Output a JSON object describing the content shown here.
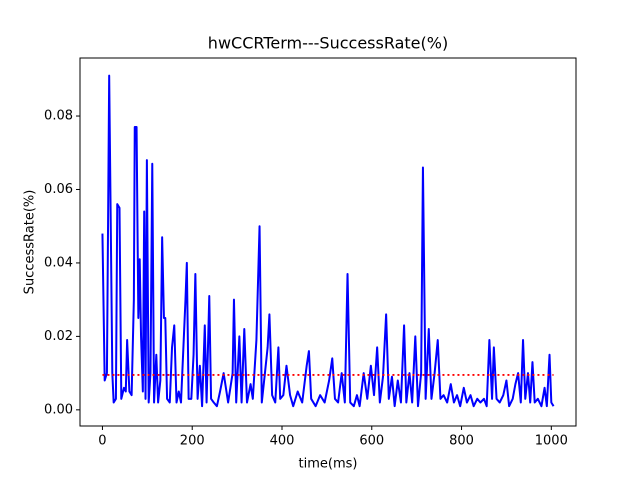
{
  "chart_data": {
    "type": "line",
    "title": "hwCCRTerm---SuccessRate(%)",
    "xlabel": "time(ms)",
    "ylabel": "SuccessRate(%)",
    "color": "#0000ff",
    "x": [
      0,
      5,
      10,
      15,
      22,
      25,
      30,
      33,
      38,
      42,
      48,
      52,
      55,
      60,
      65,
      70,
      72,
      76,
      80,
      83,
      86,
      90,
      93,
      96,
      99,
      103,
      107,
      111,
      115,
      120,
      124,
      129,
      133,
      137,
      140,
      144,
      150,
      155,
      160,
      165,
      170,
      175,
      185,
      188,
      192,
      198,
      203,
      207,
      212,
      217,
      222,
      228,
      232,
      238,
      242,
      248,
      255,
      262,
      270,
      280,
      290,
      293,
      298,
      305,
      310,
      316,
      322,
      330,
      335,
      343,
      350,
      355,
      362,
      368,
      372,
      378,
      385,
      392,
      396,
      403,
      410,
      418,
      425,
      435,
      445,
      455,
      460,
      465,
      475,
      485,
      495,
      505,
      512,
      518,
      525,
      533,
      540,
      546,
      552,
      560,
      567,
      573,
      582,
      590,
      598,
      605,
      612,
      618,
      625,
      632,
      638,
      645,
      651,
      658,
      665,
      672,
      677,
      684,
      690,
      697,
      703,
      710,
      714,
      720,
      727,
      733,
      740,
      747,
      753,
      760,
      768,
      776,
      783,
      790,
      797,
      805,
      812,
      820,
      827,
      835,
      842,
      850,
      856,
      862,
      868,
      872,
      878,
      885,
      893,
      900,
      906,
      914,
      920,
      926,
      932,
      937,
      942,
      948,
      953,
      958,
      963,
      970,
      978,
      985,
      990,
      996,
      1000,
      1005
    ],
    "values": [
      0.048,
      0.008,
      0.01,
      0.091,
      0.01,
      0.002,
      0.003,
      0.056,
      0.055,
      0.003,
      0.006,
      0.005,
      0.019,
      0.005,
      0.004,
      0.03,
      0.077,
      0.077,
      0.025,
      0.041,
      0.02,
      0.005,
      0.054,
      0.003,
      0.068,
      0.002,
      0.01,
      0.067,
      0.002,
      0.015,
      0.002,
      0.008,
      0.047,
      0.025,
      0.025,
      0.003,
      0.002,
      0.017,
      0.023,
      0.002,
      0.005,
      0.002,
      0.03,
      0.04,
      0.003,
      0.003,
      0.015,
      0.037,
      0.003,
      0.012,
      0.001,
      0.023,
      0.002,
      0.031,
      0.003,
      0.002,
      0.001,
      0.005,
      0.01,
      0.002,
      0.01,
      0.03,
      0.002,
      0.02,
      0.002,
      0.022,
      0.002,
      0.007,
      0.003,
      0.019,
      0.05,
      0.002,
      0.01,
      0.017,
      0.026,
      0.004,
      0.002,
      0.017,
      0.003,
      0.004,
      0.012,
      0.004,
      0.001,
      0.005,
      0.002,
      0.012,
      0.016,
      0.003,
      0.001,
      0.004,
      0.002,
      0.008,
      0.014,
      0.003,
      0.002,
      0.01,
      0.002,
      0.037,
      0.002,
      0.001,
      0.004,
      0.001,
      0.01,
      0.003,
      0.012,
      0.004,
      0.017,
      0.002,
      0.009,
      0.026,
      0.003,
      0.009,
      0.001,
      0.008,
      0.002,
      0.023,
      0.002,
      0.01,
      0.002,
      0.02,
      0.001,
      0.01,
      0.066,
      0.003,
      0.022,
      0.003,
      0.01,
      0.019,
      0.003,
      0.004,
      0.002,
      0.007,
      0.002,
      0.004,
      0.001,
      0.006,
      0.002,
      0.004,
      0.001,
      0.003,
      0.002,
      0.003,
      0.001,
      0.019,
      0.003,
      0.017,
      0.003,
      0.002,
      0.004,
      0.008,
      0.001,
      0.003,
      0.007,
      0.01,
      0.002,
      0.019,
      0.003,
      0.01,
      0.002,
      0.013,
      0.002,
      0.003,
      0.001,
      0.006,
      0.001,
      0.015,
      0.002,
      0.001
    ],
    "reference_line": {
      "value": 0.0095,
      "x": [
        0,
        1005
      ],
      "color": "#ff0000",
      "style": "dotted"
    },
    "xlim": [
      -50,
      1055
    ],
    "ylim": [
      -0.0044,
      0.0958
    ],
    "xticks": [
      0,
      200,
      400,
      600,
      800,
      1000
    ],
    "yticks": [
      {
        "value": 0,
        "label": "0.00"
      },
      {
        "value": 0.02,
        "label": "0.02"
      },
      {
        "value": 0.04,
        "label": "0.04"
      },
      {
        "value": 0.06,
        "label": "0.06"
      },
      {
        "value": 0.08,
        "label": "0.08"
      }
    ]
  }
}
